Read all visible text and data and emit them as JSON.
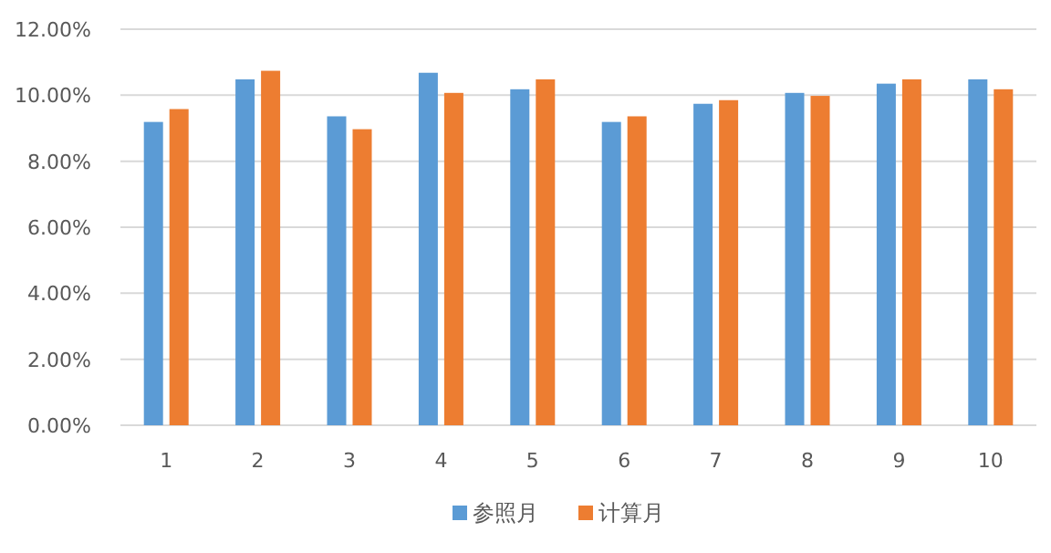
{
  "chart_data": {
    "type": "bar",
    "categories": [
      "1",
      "2",
      "3",
      "4",
      "5",
      "6",
      "7",
      "8",
      "9",
      "10"
    ],
    "series": [
      {
        "name": "参照月",
        "color": "#5b9bd5",
        "values": [
          9.19,
          10.48,
          9.36,
          10.68,
          10.18,
          9.19,
          9.74,
          10.07,
          10.35,
          10.48
        ]
      },
      {
        "name": "计算月",
        "color": "#ed7d31",
        "values": [
          9.58,
          10.74,
          8.97,
          10.07,
          10.48,
          9.36,
          9.85,
          9.98,
          10.48,
          10.18
        ]
      }
    ],
    "ylim": [
      0,
      12
    ],
    "yticks": [
      {
        "value": 0,
        "label": "0.00%"
      },
      {
        "value": 2,
        "label": "2.00%"
      },
      {
        "value": 4,
        "label": "4.00%"
      },
      {
        "value": 6,
        "label": "6.00%"
      },
      {
        "value": 8,
        "label": "8.00%"
      },
      {
        "value": 10,
        "label": "10.00%"
      },
      {
        "value": 12,
        "label": "12.00%"
      }
    ],
    "grid": "y",
    "legend": "bottom"
  }
}
